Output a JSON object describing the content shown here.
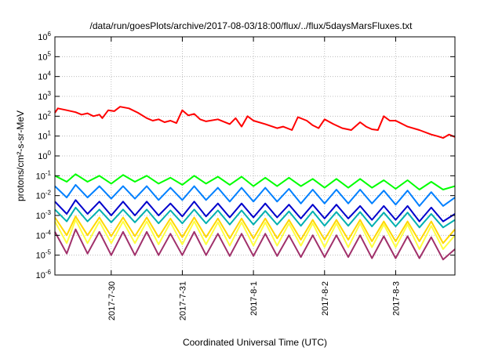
{
  "chart_data": {
    "type": "line",
    "title": "/data/run/goesPlots/archive/2017-08-03/18:00/flux/../flux/5daysMarsFluxes.txt",
    "xlabel": "Coordinated Universal Time (UTC)",
    "ylabel": "protons/cm²-s-sr-MeV",
    "yscale": "log",
    "ylim": [
      1e-06,
      1000000.0
    ],
    "xlim": [
      "2017-07-29T05:00",
      "2017-08-03T20:00"
    ],
    "y_ticks": [
      {
        "value": 1e-06,
        "base": "10",
        "exp": "-6"
      },
      {
        "value": 1e-05,
        "base": "10",
        "exp": "-5"
      },
      {
        "value": 0.0001,
        "base": "10",
        "exp": "-4"
      },
      {
        "value": 0.001,
        "base": "10",
        "exp": "-3"
      },
      {
        "value": 0.01,
        "base": "10",
        "exp": "-2"
      },
      {
        "value": 0.1,
        "base": "10",
        "exp": "-1"
      },
      {
        "value": 1.0,
        "base": "10",
        "exp": "0"
      },
      {
        "value": 10.0,
        "base": "10",
        "exp": "1"
      },
      {
        "value": 100.0,
        "base": "10",
        "exp": "2"
      },
      {
        "value": 1000.0,
        "base": "10",
        "exp": "3"
      },
      {
        "value": 10000.0,
        "base": "10",
        "exp": "4"
      },
      {
        "value": 100000.0,
        "base": "10",
        "exp": "5"
      },
      {
        "value": 1000000.0,
        "base": "10",
        "exp": "6"
      }
    ],
    "x_ticks": [
      {
        "value": "2017-07-30T00:00",
        "label": "2017-7-30"
      },
      {
        "value": "2017-07-31T00:00",
        "label": "2017-7-31"
      },
      {
        "value": "2017-08-01T00:00",
        "label": "2017-8-1"
      },
      {
        "value": "2017-08-02T00:00",
        "label": "2017-8-2"
      },
      {
        "value": "2017-08-03T00:00",
        "label": "2017-8-3"
      }
    ],
    "grid": true,
    "legend": "none",
    "series": [
      {
        "color": "#ff0000",
        "x": [
          "2017-07-29T05:00",
          "2017-07-29T06:00",
          "2017-07-29T09:00",
          "2017-07-29T12:00",
          "2017-07-29T14:00",
          "2017-07-29T16:00",
          "2017-07-29T18:00",
          "2017-07-29T20:00",
          "2017-07-29T21:00",
          "2017-07-29T23:00",
          "2017-07-30T01:00",
          "2017-07-30T03:00",
          "2017-07-30T06:00",
          "2017-07-30T09:00",
          "2017-07-30T12:00",
          "2017-07-30T14:00",
          "2017-07-30T16:00",
          "2017-07-30T18:00",
          "2017-07-30T20:00",
          "2017-07-30T22:00",
          "2017-07-31T00:00",
          "2017-07-31T02:00",
          "2017-07-31T04:00",
          "2017-07-31T06:00",
          "2017-07-31T08:00",
          "2017-07-31T12:00",
          "2017-07-31T16:00",
          "2017-07-31T18:00",
          "2017-07-31T20:00",
          "2017-07-31T22:00",
          "2017-08-01T00:00",
          "2017-08-01T04:00",
          "2017-08-01T08:00",
          "2017-08-01T10:00",
          "2017-08-01T13:00",
          "2017-08-01T15:00",
          "2017-08-01T18:00",
          "2017-08-01T20:00",
          "2017-08-01T22:00",
          "2017-08-02T00:00",
          "2017-08-02T03:00",
          "2017-08-02T06:00",
          "2017-08-02T09:00",
          "2017-08-02T12:00",
          "2017-08-02T14:00",
          "2017-08-02T16:00",
          "2017-08-02T18:00",
          "2017-08-02T20:00",
          "2017-08-02T22:00",
          "2017-08-03T00:00",
          "2017-08-03T04:00",
          "2017-08-03T08:00",
          "2017-08-03T12:00",
          "2017-08-03T14:00",
          "2017-08-03T16:00",
          "2017-08-03T18:00",
          "2017-08-03T20:00"
        ],
        "y": [
          150,
          250,
          200,
          160,
          120,
          140,
          100,
          120,
          80,
          200,
          180,
          300,
          250,
          150,
          80,
          60,
          70,
          50,
          60,
          45,
          200,
          110,
          130,
          70,
          55,
          70,
          40,
          80,
          30,
          100,
          60,
          40,
          25,
          30,
          20,
          90,
          60,
          35,
          25,
          70,
          40,
          25,
          20,
          50,
          30,
          22,
          20,
          100,
          60,
          60,
          30,
          20,
          12,
          10,
          8,
          12,
          9
        ]
      },
      {
        "color": "#00ff00",
        "x": [
          "2017-07-29T05:00",
          "2017-07-29T09:00",
          "2017-07-29T12:00",
          "2017-07-29T16:00",
          "2017-07-29T20:00",
          "2017-07-30T00:00",
          "2017-07-30T04:00",
          "2017-07-30T08:00",
          "2017-07-30T12:00",
          "2017-07-30T16:00",
          "2017-07-30T20:00",
          "2017-07-31T00:00",
          "2017-07-31T04:00",
          "2017-07-31T08:00",
          "2017-07-31T12:00",
          "2017-07-31T16:00",
          "2017-07-31T20:00",
          "2017-08-01T00:00",
          "2017-08-01T04:00",
          "2017-08-01T08:00",
          "2017-08-01T12:00",
          "2017-08-01T16:00",
          "2017-08-01T20:00",
          "2017-08-02T00:00",
          "2017-08-02T04:00",
          "2017-08-02T08:00",
          "2017-08-02T12:00",
          "2017-08-02T16:00",
          "2017-08-02T20:00",
          "2017-08-03T00:00",
          "2017-08-03T04:00",
          "2017-08-03T08:00",
          "2017-08-03T12:00",
          "2017-08-03T16:00",
          "2017-08-03T20:00"
        ],
        "y": [
          0.1,
          0.05,
          0.12,
          0.05,
          0.1,
          0.04,
          0.11,
          0.05,
          0.1,
          0.04,
          0.08,
          0.035,
          0.1,
          0.04,
          0.09,
          0.035,
          0.09,
          0.03,
          0.08,
          0.03,
          0.08,
          0.03,
          0.07,
          0.025,
          0.07,
          0.025,
          0.07,
          0.025,
          0.06,
          0.022,
          0.06,
          0.02,
          0.05,
          0.02,
          0.03
        ]
      },
      {
        "color": "#0080ff",
        "x": [
          "2017-07-29T05:00",
          "2017-07-29T09:00",
          "2017-07-29T12:00",
          "2017-07-29T16:00",
          "2017-07-29T20:00",
          "2017-07-30T00:00",
          "2017-07-30T04:00",
          "2017-07-30T08:00",
          "2017-07-30T12:00",
          "2017-07-30T16:00",
          "2017-07-30T20:00",
          "2017-07-31T00:00",
          "2017-07-31T04:00",
          "2017-07-31T08:00",
          "2017-07-31T12:00",
          "2017-07-31T16:00",
          "2017-07-31T20:00",
          "2017-08-01T00:00",
          "2017-08-01T04:00",
          "2017-08-01T08:00",
          "2017-08-01T12:00",
          "2017-08-01T16:00",
          "2017-08-01T20:00",
          "2017-08-02T00:00",
          "2017-08-02T04:00",
          "2017-08-02T08:00",
          "2017-08-02T12:00",
          "2017-08-02T16:00",
          "2017-08-02T20:00",
          "2017-08-03T00:00",
          "2017-08-03T04:00",
          "2017-08-03T08:00",
          "2017-08-03T12:00",
          "2017-08-03T16:00",
          "2017-08-03T20:00"
        ],
        "y": [
          0.03,
          0.008,
          0.035,
          0.008,
          0.03,
          0.007,
          0.03,
          0.007,
          0.03,
          0.006,
          0.025,
          0.006,
          0.03,
          0.006,
          0.025,
          0.005,
          0.025,
          0.005,
          0.025,
          0.005,
          0.022,
          0.004,
          0.02,
          0.004,
          0.02,
          0.004,
          0.02,
          0.004,
          0.018,
          0.0035,
          0.018,
          0.003,
          0.015,
          0.003,
          0.008
        ]
      },
      {
        "color": "#0000cc",
        "x": [
          "2017-07-29T05:00",
          "2017-07-29T09:00",
          "2017-07-29T12:00",
          "2017-07-29T16:00",
          "2017-07-29T20:00",
          "2017-07-30T00:00",
          "2017-07-30T04:00",
          "2017-07-30T08:00",
          "2017-07-30T12:00",
          "2017-07-30T16:00",
          "2017-07-30T20:00",
          "2017-07-31T00:00",
          "2017-07-31T04:00",
          "2017-07-31T08:00",
          "2017-07-31T12:00",
          "2017-07-31T16:00",
          "2017-07-31T20:00",
          "2017-08-01T00:00",
          "2017-08-01T04:00",
          "2017-08-01T08:00",
          "2017-08-01T12:00",
          "2017-08-01T16:00",
          "2017-08-01T20:00",
          "2017-08-02T00:00",
          "2017-08-02T04:00",
          "2017-08-02T08:00",
          "2017-08-02T12:00",
          "2017-08-02T16:00",
          "2017-08-02T20:00",
          "2017-08-03T00:00",
          "2017-08-03T04:00",
          "2017-08-03T08:00",
          "2017-08-03T12:00",
          "2017-08-03T16:00",
          "2017-08-03T20:00"
        ],
        "y": [
          0.005,
          0.0012,
          0.006,
          0.0012,
          0.005,
          0.001,
          0.005,
          0.001,
          0.005,
          0.001,
          0.004,
          0.0009,
          0.005,
          0.0009,
          0.004,
          0.0008,
          0.004,
          0.0008,
          0.004,
          0.0008,
          0.0035,
          0.0007,
          0.0035,
          0.0007,
          0.0035,
          0.0007,
          0.003,
          0.0006,
          0.003,
          0.0006,
          0.003,
          0.0005,
          0.0025,
          0.0005,
          0.0012
        ]
      },
      {
        "color": "#00b0b0",
        "x": [
          "2017-07-29T05:00",
          "2017-07-29T09:00",
          "2017-07-29T12:00",
          "2017-07-29T16:00",
          "2017-07-29T20:00",
          "2017-07-30T00:00",
          "2017-07-30T04:00",
          "2017-07-30T08:00",
          "2017-07-30T12:00",
          "2017-07-30T16:00",
          "2017-07-30T20:00",
          "2017-07-31T00:00",
          "2017-07-31T04:00",
          "2017-07-31T08:00",
          "2017-07-31T12:00",
          "2017-07-31T16:00",
          "2017-07-31T20:00",
          "2017-08-01T00:00",
          "2017-08-01T04:00",
          "2017-08-01T08:00",
          "2017-08-01T12:00",
          "2017-08-01T16:00",
          "2017-08-01T20:00",
          "2017-08-02T00:00",
          "2017-08-02T04:00",
          "2017-08-02T08:00",
          "2017-08-02T12:00",
          "2017-08-02T16:00",
          "2017-08-02T20:00",
          "2017-08-03T00:00",
          "2017-08-03T04:00",
          "2017-08-03T08:00",
          "2017-08-03T12:00",
          "2017-08-03T16:00",
          "2017-08-03T20:00"
        ],
        "y": [
          0.002,
          0.0005,
          0.0025,
          0.0005,
          0.002,
          0.00045,
          0.002,
          0.00045,
          0.002,
          0.0004,
          0.0018,
          0.0004,
          0.002,
          0.0004,
          0.0018,
          0.00035,
          0.0018,
          0.00035,
          0.0017,
          0.00035,
          0.0016,
          0.0003,
          0.0016,
          0.0003,
          0.0015,
          0.0003,
          0.0015,
          0.00028,
          0.0014,
          0.00028,
          0.0014,
          0.00025,
          0.0012,
          0.00025,
          0.0006
        ]
      },
      {
        "color": "#ffd700",
        "x": [
          "2017-07-29T05:00",
          "2017-07-29T09:00",
          "2017-07-29T12:00",
          "2017-07-29T16:00",
          "2017-07-29T20:00",
          "2017-07-30T00:00",
          "2017-07-30T04:00",
          "2017-07-30T08:00",
          "2017-07-30T12:00",
          "2017-07-30T16:00",
          "2017-07-30T20:00",
          "2017-07-31T00:00",
          "2017-07-31T04:00",
          "2017-07-31T08:00",
          "2017-07-31T12:00",
          "2017-07-31T16:00",
          "2017-07-31T20:00",
          "2017-08-01T00:00",
          "2017-08-01T04:00",
          "2017-08-01T08:00",
          "2017-08-01T12:00",
          "2017-08-01T16:00",
          "2017-08-01T20:00",
          "2017-08-02T00:00",
          "2017-08-02T04:00",
          "2017-08-02T08:00",
          "2017-08-02T12:00",
          "2017-08-02T16:00",
          "2017-08-02T20:00",
          "2017-08-03T00:00",
          "2017-08-03T04:00",
          "2017-08-03T08:00",
          "2017-08-03T12:00",
          "2017-08-03T16:00",
          "2017-08-03T20:00"
        ],
        "y": [
          0.0008,
          0.0001,
          0.0009,
          0.0001,
          0.0008,
          9e-05,
          0.0008,
          9e-05,
          0.0008,
          8e-05,
          0.0007,
          8e-05,
          0.0008,
          8e-05,
          0.0007,
          7e-05,
          0.0007,
          7e-05,
          0.0007,
          7e-05,
          0.0006,
          6e-05,
          0.0006,
          6e-05,
          0.0006,
          6e-05,
          0.0006,
          5e-05,
          0.0005,
          5e-05,
          0.0005,
          5e-05,
          0.0005,
          4e-05,
          0.0002
        ]
      },
      {
        "color": "#ffff40",
        "x": [
          "2017-07-29T05:00",
          "2017-07-29T09:00",
          "2017-07-29T12:00",
          "2017-07-29T16:00",
          "2017-07-29T20:00",
          "2017-07-30T00:00",
          "2017-07-30T04:00",
          "2017-07-30T08:00",
          "2017-07-30T12:00",
          "2017-07-30T16:00",
          "2017-07-30T20:00",
          "2017-07-31T00:00",
          "2017-07-31T04:00",
          "2017-07-31T08:00",
          "2017-07-31T12:00",
          "2017-07-31T16:00",
          "2017-07-31T20:00",
          "2017-08-01T00:00",
          "2017-08-01T04:00",
          "2017-08-01T08:00",
          "2017-08-01T12:00",
          "2017-08-01T16:00",
          "2017-08-01T20:00",
          "2017-08-02T00:00",
          "2017-08-02T04:00",
          "2017-08-02T08:00",
          "2017-08-02T12:00",
          "2017-08-02T16:00",
          "2017-08-02T20:00",
          "2017-08-03T00:00",
          "2017-08-03T04:00",
          "2017-08-03T08:00",
          "2017-08-03T12:00",
          "2017-08-03T16:00",
          "2017-08-03T20:00"
        ],
        "y": [
          0.0005,
          4e-05,
          0.0006,
          4e-05,
          0.0005,
          4e-05,
          0.0005,
          4e-05,
          0.0005,
          3.5e-05,
          0.00045,
          3.5e-05,
          0.0005,
          3.5e-05,
          0.00045,
          3e-05,
          0.00045,
          3e-05,
          0.00045,
          3e-05,
          0.0004,
          3e-05,
          0.0004,
          2.5e-05,
          0.0004,
          2.5e-05,
          0.0004,
          2.5e-05,
          0.00035,
          2.5e-05,
          0.00035,
          2e-05,
          0.0003,
          2e-05,
          0.0001
        ]
      },
      {
        "color": "#a0306a",
        "x": [
          "2017-07-29T05:00",
          "2017-07-29T09:00",
          "2017-07-29T12:00",
          "2017-07-29T16:00",
          "2017-07-29T20:00",
          "2017-07-30T00:00",
          "2017-07-30T04:00",
          "2017-07-30T08:00",
          "2017-07-30T12:00",
          "2017-07-30T16:00",
          "2017-07-30T20:00",
          "2017-07-31T00:00",
          "2017-07-31T04:00",
          "2017-07-31T08:00",
          "2017-07-31T12:00",
          "2017-07-31T16:00",
          "2017-07-31T20:00",
          "2017-08-01T00:00",
          "2017-08-01T04:00",
          "2017-08-01T08:00",
          "2017-08-01T12:00",
          "2017-08-01T16:00",
          "2017-08-01T20:00",
          "2017-08-02T00:00",
          "2017-08-02T04:00",
          "2017-08-02T08:00",
          "2017-08-02T12:00",
          "2017-08-02T16:00",
          "2017-08-02T20:00",
          "2017-08-03T00:00",
          "2017-08-03T04:00",
          "2017-08-03T08:00",
          "2017-08-03T12:00",
          "2017-08-03T16:00",
          "2017-08-03T20:00"
        ],
        "y": [
          0.00015,
          1.2e-05,
          0.0002,
          1.2e-05,
          0.00015,
          1e-05,
          0.00015,
          1e-05,
          0.00015,
          1e-05,
          0.00012,
          1e-05,
          0.00015,
          1e-05,
          0.00012,
          9e-06,
          0.00012,
          9e-06,
          0.00012,
          9e-06,
          0.0001,
          8e-06,
          0.0001,
          8e-06,
          0.0001,
          8e-06,
          0.0001,
          7e-06,
          9e-05,
          7e-06,
          9e-05,
          7e-06,
          8e-05,
          6e-06,
          2e-05
        ]
      }
    ]
  }
}
